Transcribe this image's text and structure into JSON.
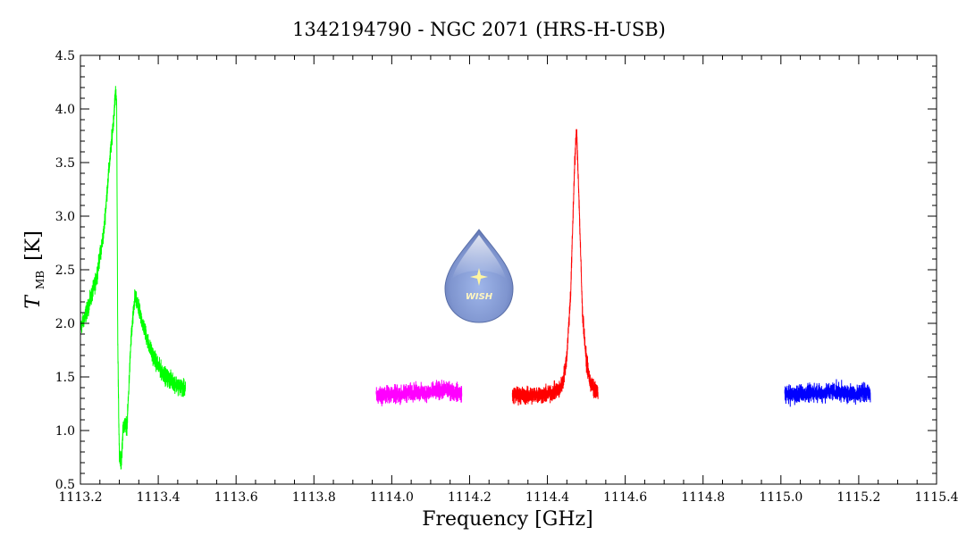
{
  "chart_data": {
    "type": "line",
    "title": "1342194790 - NGC 2071 (HRS-H-USB)",
    "xlabel": "Frequency [GHz]",
    "ylabel_main": "T",
    "ylabel_sub": "MB",
    "ylabel_unit": "[K]",
    "xlim": [
      1113.2,
      1115.4
    ],
    "ylim": [
      0.5,
      4.5
    ],
    "x_ticks": [
      "1113.2",
      "1113.4",
      "1113.6",
      "1113.8",
      "1114.0",
      "1114.2",
      "1114.4",
      "1114.6",
      "1114.8",
      "1115.0",
      "1115.2",
      "1115.4"
    ],
    "y_ticks": [
      "0.5",
      "1.0",
      "1.5",
      "2.0",
      "2.5",
      "3.0",
      "3.5",
      "4.0",
      "4.5"
    ],
    "grid": false,
    "logo_text": "WISH",
    "series": [
      {
        "color": "#00ff00",
        "x": [
          1113.2,
          1113.22,
          1113.24,
          1113.26,
          1113.27,
          1113.28,
          1113.285,
          1113.29,
          1113.293,
          1113.296,
          1113.3,
          1113.305,
          1113.31,
          1113.32,
          1113.33,
          1113.34,
          1113.36,
          1113.38,
          1113.4,
          1113.42,
          1113.44,
          1113.46,
          1113.47
        ],
        "y": [
          1.95,
          2.15,
          2.4,
          2.85,
          3.3,
          3.7,
          3.9,
          4.15,
          4.1,
          1.8,
          0.75,
          0.7,
          1.05,
          1.05,
          1.85,
          2.25,
          2.0,
          1.75,
          1.6,
          1.5,
          1.45,
          1.4,
          1.38
        ]
      },
      {
        "color": "#ff00ff",
        "x": [
          1113.96,
          1113.98,
          1114.0,
          1114.02,
          1114.04,
          1114.06,
          1114.08,
          1114.1,
          1114.12,
          1114.14,
          1114.16,
          1114.18
        ],
        "y": [
          1.32,
          1.33,
          1.34,
          1.33,
          1.35,
          1.36,
          1.35,
          1.36,
          1.37,
          1.38,
          1.36,
          1.35
        ]
      },
      {
        "color": "#ff0000",
        "x": [
          1114.31,
          1114.33,
          1114.35,
          1114.37,
          1114.39,
          1114.41,
          1114.43,
          1114.44,
          1114.45,
          1114.46,
          1114.465,
          1114.47,
          1114.475,
          1114.48,
          1114.485,
          1114.49,
          1114.5,
          1114.51,
          1114.52,
          1114.53
        ],
        "y": [
          1.33,
          1.33,
          1.32,
          1.34,
          1.33,
          1.35,
          1.38,
          1.45,
          1.7,
          2.3,
          2.9,
          3.5,
          3.8,
          3.3,
          2.7,
          2.1,
          1.65,
          1.45,
          1.38,
          1.35
        ]
      },
      {
        "color": "#0000ff",
        "x": [
          1115.01,
          1115.03,
          1115.05,
          1115.07,
          1115.09,
          1115.11,
          1115.13,
          1115.15,
          1115.17,
          1115.19,
          1115.21,
          1115.23
        ],
        "y": [
          1.34,
          1.33,
          1.35,
          1.34,
          1.36,
          1.35,
          1.37,
          1.36,
          1.35,
          1.34,
          1.36,
          1.34
        ]
      }
    ]
  }
}
